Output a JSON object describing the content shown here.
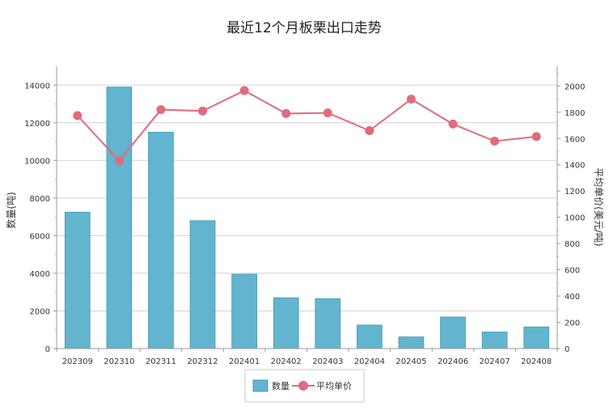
{
  "chart_data": {
    "type": "bar",
    "title": "最近12个月板栗出口走势",
    "categories": [
      "202309",
      "202310",
      "202311",
      "202312",
      "202401",
      "202402",
      "202403",
      "202404",
      "202405",
      "202406",
      "202407",
      "202408"
    ],
    "series": [
      {
        "name": "数量",
        "type": "bar",
        "axis": "left",
        "color": "#62b4cf",
        "values": [
          7250,
          13900,
          11500,
          6800,
          3950,
          2700,
          2650,
          1250,
          620,
          1680,
          880,
          1150
        ]
      },
      {
        "name": "平均单价",
        "type": "line",
        "axis": "right",
        "color": "#e06b7d",
        "values": [
          1775,
          1430,
          1820,
          1810,
          1965,
          1790,
          1795,
          1660,
          1900,
          1710,
          1580,
          1615
        ]
      }
    ],
    "ylabel": "数量(吨)",
    "y2label": "平均单价(美元/吨)",
    "ylim": [
      0,
      15000
    ],
    "y2lim": [
      0,
      2150
    ],
    "yticks": [
      "0",
      "2000",
      "4000",
      "6000",
      "8000",
      "10000",
      "12000",
      "14000"
    ],
    "y2ticks": [
      "0",
      "200",
      "400",
      "600",
      "800",
      "1000",
      "1200",
      "1400",
      "1600",
      "1800",
      "2000"
    ],
    "grid": true,
    "legend_position": "bottom-center"
  }
}
